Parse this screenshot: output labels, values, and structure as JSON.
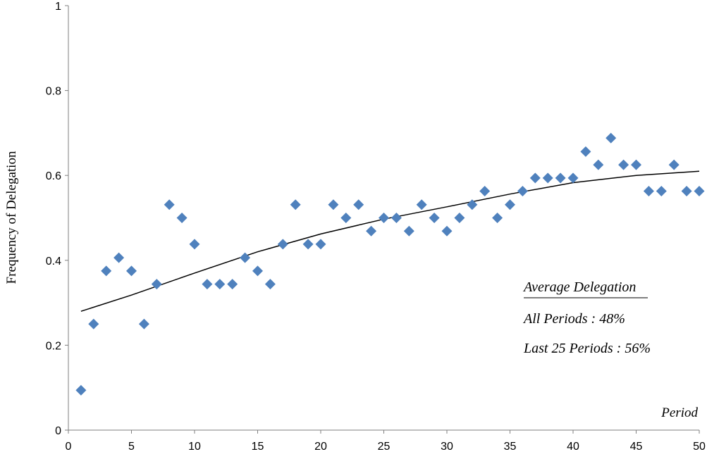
{
  "chart_data": {
    "type": "scatter",
    "title": "",
    "xlabel": "Period",
    "ylabel": "Frequency of Delegation",
    "xlim": [
      0,
      50
    ],
    "ylim": [
      0,
      1
    ],
    "xticks": [
      0,
      5,
      10,
      15,
      20,
      25,
      30,
      35,
      40,
      45,
      50
    ],
    "yticks": [
      0,
      0.2,
      0.4,
      0.6,
      0.8,
      1
    ],
    "ytick_labels": [
      "0",
      "0.2",
      "0.4",
      "0.6",
      "0.8",
      "1"
    ],
    "grid": false,
    "legend": "none",
    "marker_color": "#4F81BD",
    "trend_color": "#000000",
    "series": [
      {
        "x": [
          1,
          2,
          3,
          4,
          5,
          6,
          7,
          8,
          9,
          10,
          11,
          12,
          13,
          14,
          15,
          16,
          17,
          18,
          19,
          20,
          21,
          22,
          23,
          24,
          25,
          26,
          27,
          28,
          29,
          30,
          31,
          32,
          33,
          34,
          35,
          36,
          37,
          38,
          39,
          40,
          41,
          42,
          43,
          44,
          45,
          46,
          47,
          48,
          49,
          50
        ],
        "y": [
          0.094,
          0.25,
          0.375,
          0.406,
          0.375,
          0.25,
          0.344,
          0.531,
          0.5,
          0.438,
          0.344,
          0.344,
          0.344,
          0.406,
          0.375,
          0.344,
          0.438,
          0.531,
          0.438,
          0.438,
          0.531,
          0.5,
          0.531,
          0.469,
          0.5,
          0.5,
          0.469,
          0.531,
          0.5,
          0.469,
          0.5,
          0.531,
          0.563,
          0.5,
          0.531,
          0.563,
          0.594,
          0.594,
          0.594,
          0.594,
          0.656,
          0.625,
          0.688,
          0.625,
          0.625,
          0.563,
          0.563,
          0.625,
          0.563,
          0.563
        ]
      }
    ],
    "trendline": {
      "type": "polynomial",
      "x": [
        1,
        5,
        10,
        15,
        20,
        25,
        30,
        35,
        40,
        45,
        50
      ],
      "y": [
        0.28,
        0.318,
        0.37,
        0.42,
        0.462,
        0.497,
        0.526,
        0.556,
        0.583,
        0.6,
        0.61
      ]
    },
    "annotation": {
      "heading": "Average Delegation",
      "lines": [
        "All Periods : 48%",
        "Last 25 Periods : 56%"
      ]
    }
  }
}
